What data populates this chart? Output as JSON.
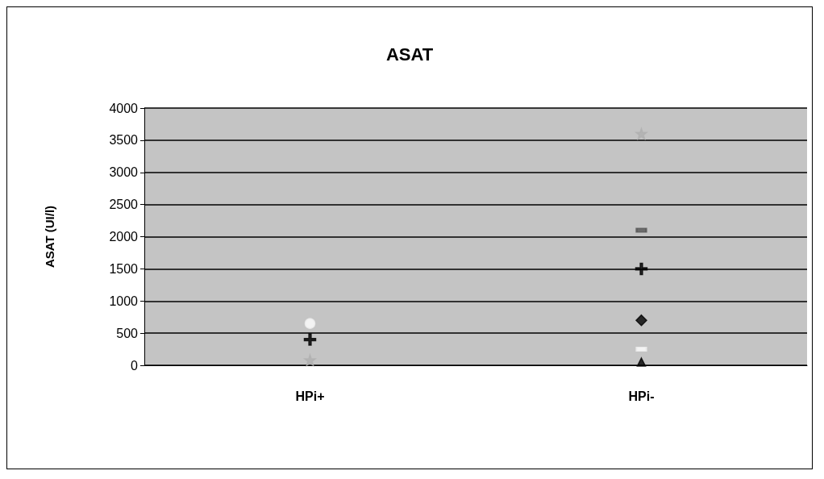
{
  "chart_data": {
    "type": "scatter",
    "title": "ASAT",
    "ylabel": "ASAT (UI/l)",
    "categories": [
      "HPi+",
      "HPi-"
    ],
    "ylim": [
      0,
      4000
    ],
    "yticks": [
      0,
      500,
      1000,
      1500,
      2000,
      2500,
      3000,
      3500,
      4000
    ],
    "grid": "y",
    "series": [
      {
        "color": "#ffffff",
        "marker": "circle",
        "values": [
          650,
          null
        ]
      },
      {
        "color": "#000000",
        "marker": "cross",
        "values": [
          400,
          1500
        ]
      },
      {
        "color": "#b0b0b0",
        "marker": "star",
        "values": [
          80,
          3600
        ]
      },
      {
        "color": "#555555",
        "marker": "square",
        "values": [
          null,
          2100
        ]
      },
      {
        "color": "#000000",
        "marker": "diamond",
        "values": [
          null,
          700
        ]
      },
      {
        "color": "#ffffff",
        "marker": "square",
        "values": [
          null,
          250
        ]
      },
      {
        "color": "#000000",
        "marker": "triangle",
        "values": [
          null,
          50
        ]
      }
    ]
  }
}
